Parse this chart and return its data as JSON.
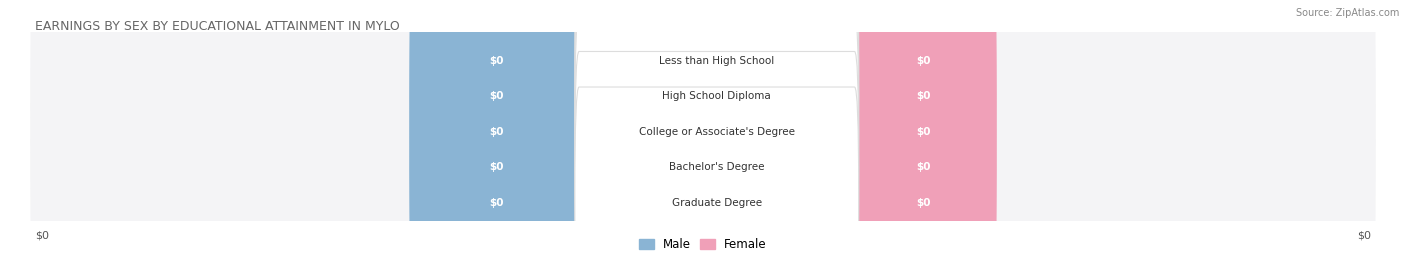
{
  "title": "EARNINGS BY SEX BY EDUCATIONAL ATTAINMENT IN MYLO",
  "source": "Source: ZipAtlas.com",
  "categories": [
    "Less than High School",
    "High School Diploma",
    "College or Associate's Degree",
    "Bachelor's Degree",
    "Graduate Degree"
  ],
  "male_values": [
    0,
    0,
    0,
    0,
    0
  ],
  "female_values": [
    0,
    0,
    0,
    0,
    0
  ],
  "male_color": "#8ab4d4",
  "female_color": "#f0a0b8",
  "row_bg_color": "#e8e8ec",
  "row_bg_light": "#f4f4f6",
  "center_box_color": "#ffffff",
  "xlim": [
    0,
    1
  ],
  "xlabel_left": "$0",
  "xlabel_right": "$0",
  "legend_male": "Male",
  "legend_female": "Female",
  "background_color": "#ffffff",
  "title_color": "#666666",
  "source_color": "#888888",
  "axis_label_color": "#555555"
}
